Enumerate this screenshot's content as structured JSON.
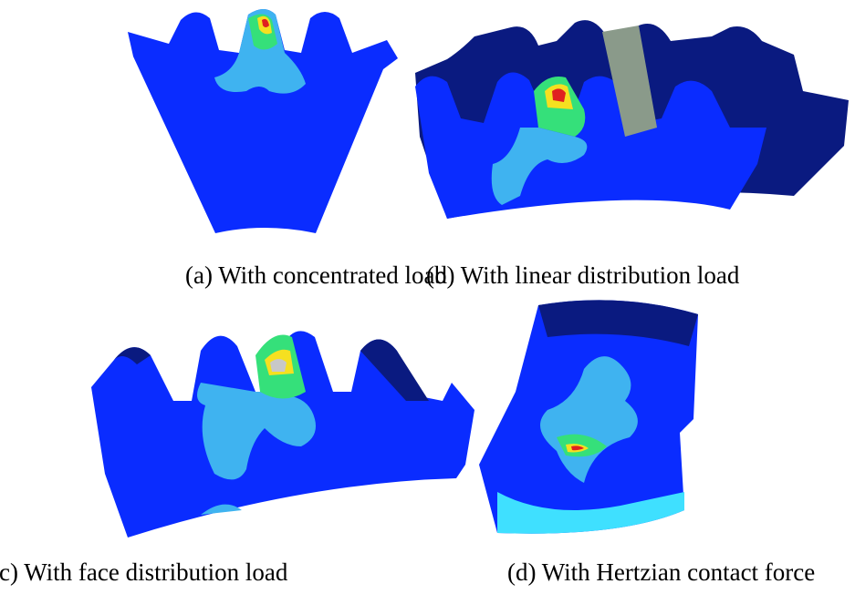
{
  "figure": {
    "panels": [
      {
        "caption": "(a) With concentrated load"
      },
      {
        "caption": "(b) With linear distribution load"
      },
      {
        "caption": "(c) With face distribution load"
      },
      {
        "caption": "(d) With Hertzian contact force"
      }
    ]
  }
}
